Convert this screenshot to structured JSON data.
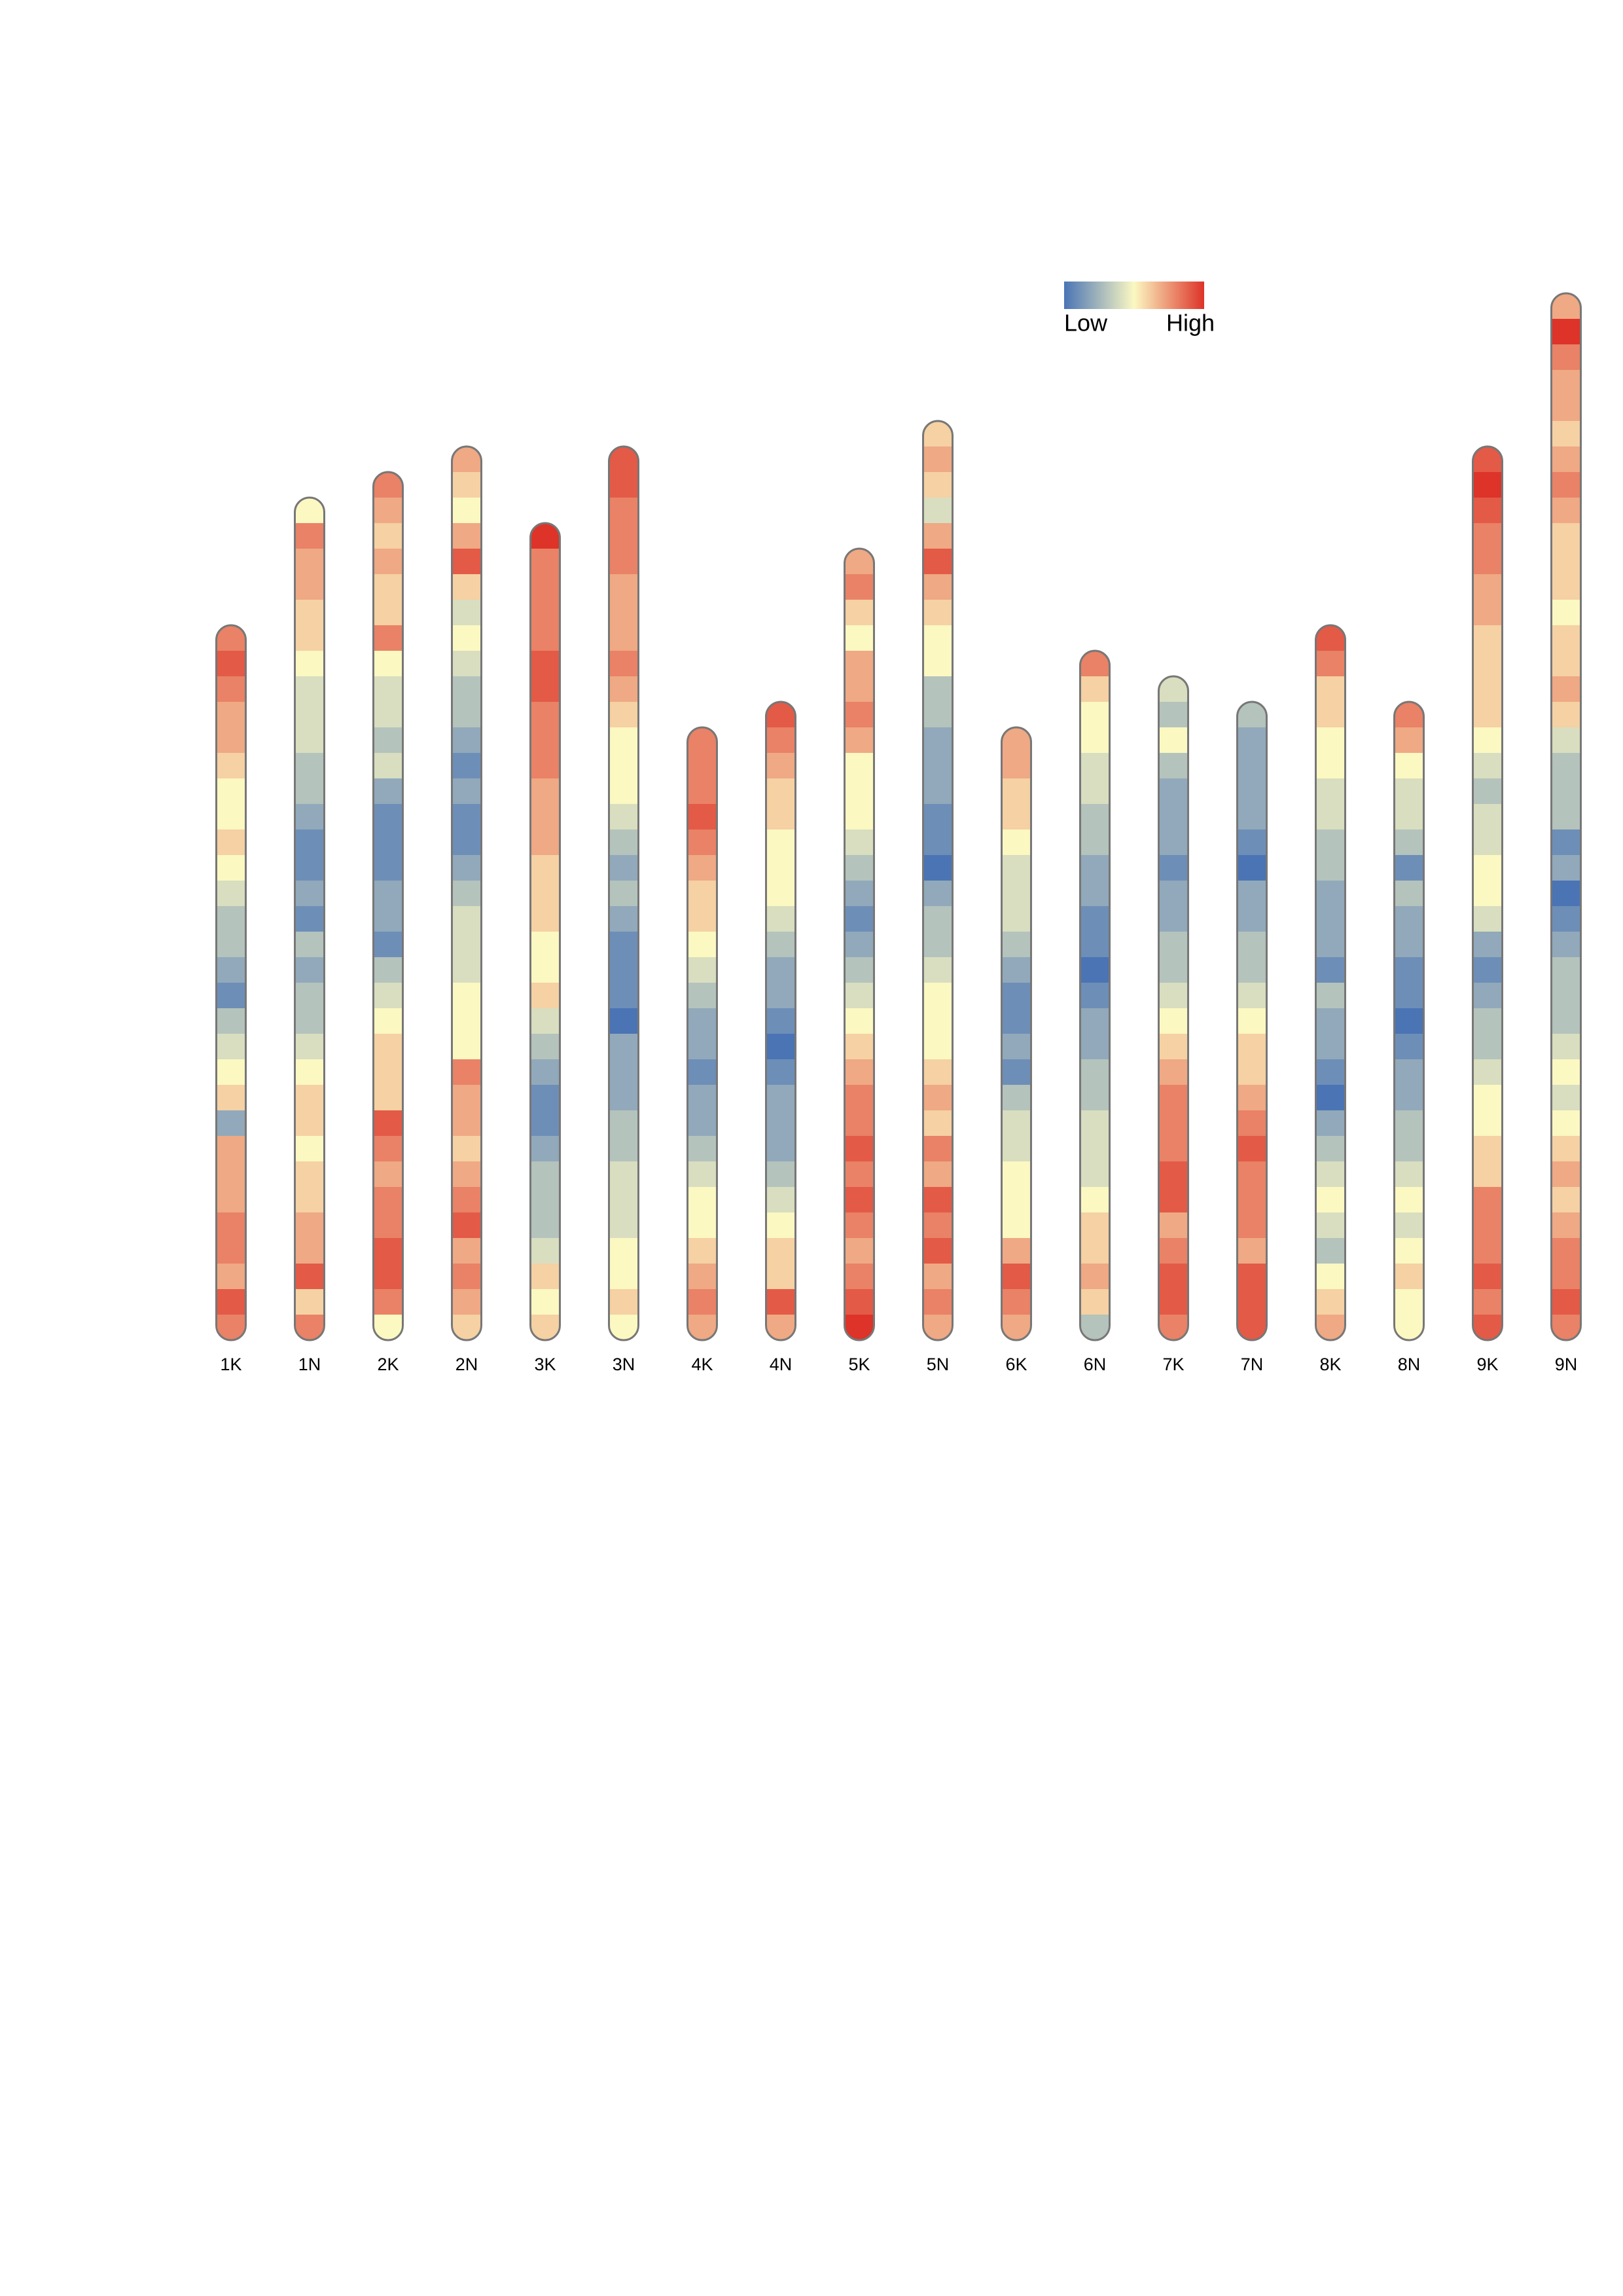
{
  "chart_data": {
    "type": "heatmap",
    "legend_labels": [
      "Low",
      "High"
    ],
    "colormap": [
      "#4a74b4",
      "#fbf8c2",
      "#dd3328"
    ],
    "vlim": [
      0,
      10
    ],
    "series": [
      {
        "name": "1K",
        "values": [
          8,
          9,
          8,
          7,
          7,
          6,
          5,
          5,
          6,
          5,
          4,
          3,
          3,
          2,
          1,
          3,
          4,
          5,
          6,
          2,
          7,
          7,
          7,
          8,
          8,
          7,
          9,
          8
        ]
      },
      {
        "name": "1N",
        "values": [
          5,
          8,
          7,
          7,
          6,
          6,
          5,
          4,
          4,
          4,
          3,
          3,
          2,
          1,
          1,
          2,
          1,
          3,
          2,
          3,
          3,
          4,
          5,
          6,
          6,
          5,
          6,
          6,
          7,
          7,
          9,
          6,
          8
        ]
      },
      {
        "name": "2K",
        "values": [
          8,
          7,
          6,
          7,
          6,
          6,
          8,
          5,
          4,
          4,
          3,
          4,
          2,
          1,
          1,
          1,
          2,
          2,
          1,
          3,
          4,
          5,
          6,
          6,
          6,
          9,
          8,
          7,
          8,
          8,
          9,
          9,
          8,
          5
        ]
      },
      {
        "name": "2N",
        "values": [
          7,
          6,
          5,
          7,
          9,
          6,
          4,
          5,
          4,
          3,
          3,
          2,
          1,
          2,
          1,
          1,
          2,
          3,
          4,
          4,
          4,
          5,
          5,
          5,
          8,
          7,
          7,
          6,
          7,
          8,
          9,
          7,
          8,
          7,
          6
        ]
      },
      {
        "name": "3K",
        "values": [
          10,
          8,
          8,
          8,
          8,
          9,
          9,
          8,
          8,
          8,
          7,
          7,
          7,
          6,
          6,
          6,
          5,
          5,
          6,
          4,
          3,
          2,
          1,
          1,
          2,
          3,
          3,
          3,
          4,
          6,
          5,
          6
        ]
      },
      {
        "name": "3N",
        "values": [
          9,
          9,
          8,
          8,
          8,
          7,
          7,
          7,
          8,
          7,
          6,
          5,
          5,
          5,
          4,
          3,
          2,
          3,
          2,
          1,
          1,
          1,
          0,
          2,
          2,
          2,
          3,
          3,
          4,
          4,
          4,
          5,
          5,
          6,
          5
        ]
      },
      {
        "name": "4K",
        "values": [
          8,
          8,
          8,
          9,
          8,
          7,
          6,
          6,
          5,
          4,
          3,
          2,
          2,
          1,
          2,
          2,
          3,
          4,
          5,
          5,
          6,
          7,
          8,
          7
        ]
      },
      {
        "name": "4N",
        "values": [
          9,
          8,
          7,
          6,
          6,
          5,
          5,
          5,
          4,
          3,
          2,
          2,
          1,
          0,
          1,
          2,
          2,
          2,
          3,
          4,
          5,
          6,
          6,
          9,
          7
        ]
      },
      {
        "name": "5K",
        "values": [
          7,
          8,
          6,
          5,
          7,
          7,
          8,
          7,
          5,
          5,
          5,
          4,
          3,
          2,
          1,
          2,
          3,
          4,
          5,
          6,
          7,
          8,
          8,
          9,
          8,
          9,
          8,
          7,
          8,
          9,
          10
        ]
      },
      {
        "name": "5N",
        "values": [
          6,
          7,
          6,
          4,
          7,
          9,
          7,
          6,
          5,
          5,
          3,
          3,
          2,
          2,
          2,
          1,
          1,
          0,
          2,
          3,
          3,
          4,
          5,
          5,
          5,
          6,
          7,
          6,
          8,
          7,
          9,
          8,
          9,
          7,
          8,
          7
        ]
      },
      {
        "name": "6K",
        "values": [
          7,
          7,
          6,
          6,
          5,
          4,
          4,
          4,
          3,
          2,
          1,
          1,
          2,
          1,
          3,
          4,
          4,
          5,
          5,
          5,
          7,
          9,
          8,
          7
        ]
      },
      {
        "name": "6N",
        "values": [
          8,
          6,
          5,
          5,
          4,
          4,
          3,
          3,
          2,
          2,
          1,
          1,
          0,
          1,
          2,
          2,
          3,
          3,
          4,
          4,
          4,
          5,
          6,
          6,
          7,
          6,
          3
        ]
      },
      {
        "name": "7K",
        "values": [
          4,
          3,
          5,
          3,
          2,
          2,
          2,
          1,
          2,
          2,
          3,
          3,
          4,
          5,
          6,
          7,
          8,
          8,
          8,
          9,
          9,
          7,
          8,
          9,
          9,
          8
        ]
      },
      {
        "name": "7N",
        "values": [
          3,
          2,
          2,
          2,
          2,
          1,
          0,
          2,
          2,
          3,
          3,
          4,
          5,
          6,
          6,
          7,
          8,
          9,
          8,
          8,
          8,
          7,
          9,
          9,
          9
        ]
      },
      {
        "name": "8K",
        "values": [
          9,
          8,
          6,
          6,
          5,
          5,
          4,
          4,
          3,
          3,
          2,
          2,
          2,
          1,
          3,
          2,
          2,
          1,
          0,
          2,
          3,
          4,
          5,
          4,
          3,
          5,
          6,
          7
        ]
      },
      {
        "name": "8N",
        "values": [
          8,
          7,
          5,
          4,
          4,
          3,
          1,
          3,
          2,
          2,
          1,
          1,
          0,
          1,
          2,
          2,
          3,
          3,
          4,
          5,
          4,
          5,
          6,
          5,
          5
        ]
      },
      {
        "name": "9K",
        "values": [
          9,
          10,
          9,
          8,
          8,
          7,
          7,
          6,
          6,
          6,
          6,
          5,
          4,
          3,
          4,
          4,
          5,
          5,
          4,
          2,
          1,
          2,
          3,
          3,
          4,
          5,
          5,
          6,
          6,
          8,
          8,
          8,
          9,
          8,
          9
        ]
      },
      {
        "name": "9N",
        "values": [
          7,
          10,
          8,
          7,
          7,
          6,
          7,
          8,
          7,
          6,
          6,
          6,
          5,
          6,
          6,
          7,
          6,
          4,
          3,
          3,
          3,
          1,
          2,
          0,
          1,
          2,
          3,
          3,
          3,
          4,
          5,
          4,
          5,
          6,
          7,
          6,
          7,
          8,
          8,
          9,
          8
        ]
      }
    ]
  }
}
